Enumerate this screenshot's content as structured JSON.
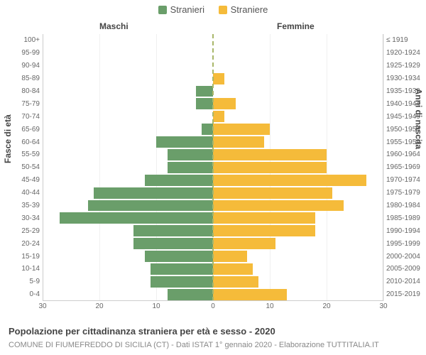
{
  "legend": {
    "male": {
      "label": "Stranieri",
      "color": "#6a9e6a"
    },
    "female": {
      "label": "Straniere",
      "color": "#f5bb3a"
    }
  },
  "headers": {
    "male": "Maschi",
    "female": "Femmine"
  },
  "axis_labels": {
    "left": "Fasce di età",
    "right": "Anni di nascita"
  },
  "chart": {
    "type": "population-pyramid",
    "xmax": 30,
    "xtick_step": 10,
    "background_color": "#ffffff",
    "grid_color": "#f0f0f0",
    "center_line_color": "#a9b76a",
    "male_color": "#6a9e6a",
    "female_color": "#f5bb3a",
    "label_fontsize": 10,
    "rows": [
      {
        "age": "100+",
        "birth": "≤ 1919",
        "m": 0,
        "f": 0
      },
      {
        "age": "95-99",
        "birth": "1920-1924",
        "m": 0,
        "f": 0
      },
      {
        "age": "90-94",
        "birth": "1925-1929",
        "m": 0,
        "f": 0
      },
      {
        "age": "85-89",
        "birth": "1930-1934",
        "m": 0,
        "f": 2
      },
      {
        "age": "80-84",
        "birth": "1935-1939",
        "m": 3,
        "f": 0
      },
      {
        "age": "75-79",
        "birth": "1940-1944",
        "m": 3,
        "f": 4
      },
      {
        "age": "70-74",
        "birth": "1945-1949",
        "m": 0,
        "f": 2
      },
      {
        "age": "65-69",
        "birth": "1950-1954",
        "m": 2,
        "f": 10
      },
      {
        "age": "60-64",
        "birth": "1955-1959",
        "m": 10,
        "f": 9
      },
      {
        "age": "55-59",
        "birth": "1960-1964",
        "m": 8,
        "f": 20
      },
      {
        "age": "50-54",
        "birth": "1965-1969",
        "m": 8,
        "f": 20
      },
      {
        "age": "45-49",
        "birth": "1970-1974",
        "m": 12,
        "f": 27
      },
      {
        "age": "40-44",
        "birth": "1975-1979",
        "m": 21,
        "f": 21
      },
      {
        "age": "35-39",
        "birth": "1980-1984",
        "m": 22,
        "f": 23
      },
      {
        "age": "30-34",
        "birth": "1985-1989",
        "m": 27,
        "f": 18
      },
      {
        "age": "25-29",
        "birth": "1990-1994",
        "m": 14,
        "f": 18
      },
      {
        "age": "20-24",
        "birth": "1995-1999",
        "m": 14,
        "f": 11
      },
      {
        "age": "15-19",
        "birth": "2000-2004",
        "m": 12,
        "f": 6
      },
      {
        "age": "10-14",
        "birth": "2005-2009",
        "m": 11,
        "f": 7
      },
      {
        "age": "5-9",
        "birth": "2010-2014",
        "m": 11,
        "f": 8
      },
      {
        "age": "0-4",
        "birth": "2015-2019",
        "m": 8,
        "f": 13
      }
    ]
  },
  "x_ticks": [
    {
      "label": "30",
      "pos": -30
    },
    {
      "label": "20",
      "pos": -20
    },
    {
      "label": "10",
      "pos": -10
    },
    {
      "label": "0",
      "pos": 0
    },
    {
      "label": "10",
      "pos": 10
    },
    {
      "label": "20",
      "pos": 20
    },
    {
      "label": "30",
      "pos": 30
    }
  ],
  "title": "Popolazione per cittadinanza straniera per età e sesso - 2020",
  "subtitle": "COMUNE DI FIUMEFREDDO DI SICILIA (CT) - Dati ISTAT 1° gennaio 2020 - Elaborazione TUTTITALIA.IT"
}
